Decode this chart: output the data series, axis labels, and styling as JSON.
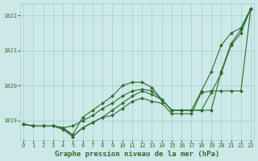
{
  "background_color": "#cce8e8",
  "grid_color": "#aacaca",
  "line_color": "#2d6e2d",
  "marker_color": "#2d6e2d",
  "title": "Graphe pression niveau de la mer (hPa)",
  "title_fontsize": 6.5,
  "ylim": [
    1018.45,
    1022.35
  ],
  "xlim": [
    -0.3,
    23.3
  ],
  "yticks": [
    1019,
    1020,
    1021,
    1022
  ],
  "xticks": [
    0,
    1,
    2,
    3,
    4,
    5,
    6,
    7,
    8,
    9,
    10,
    11,
    12,
    13,
    14,
    15,
    16,
    17,
    18,
    19,
    20,
    21,
    22,
    23
  ],
  "series": [
    [
      1018.9,
      1018.85,
      1018.85,
      1018.85,
      1018.8,
      1018.85,
      1019.0,
      1019.15,
      1019.35,
      1019.5,
      1019.7,
      1019.85,
      1019.9,
      1019.85,
      1019.6,
      1019.3,
      1019.3,
      1019.3,
      1019.3,
      1019.3,
      1020.4,
      1021.2,
      1021.6,
      1022.2
    ],
    [
      1018.9,
      1018.85,
      1018.85,
      1018.85,
      1018.75,
      1018.55,
      1018.8,
      1018.95,
      1019.1,
      1019.3,
      1019.5,
      1019.7,
      1019.85,
      1019.75,
      1019.6,
      1019.3,
      1019.3,
      1019.3,
      1019.3,
      1019.8,
      1020.35,
      1021.15,
      1021.5,
      1022.2
    ],
    [
      1018.9,
      1018.85,
      1018.85,
      1018.85,
      1018.8,
      1018.6,
      1019.1,
      1019.3,
      1019.5,
      1019.7,
      1020.0,
      1020.1,
      1020.1,
      1019.95,
      1019.6,
      1019.3,
      1019.3,
      1019.3,
      1019.85,
      1020.4,
      1021.15,
      1021.5,
      1021.65,
      1022.2
    ],
    [
      1018.9,
      1018.85,
      1018.85,
      1018.85,
      1018.8,
      1018.55,
      1018.8,
      1018.95,
      1019.1,
      1019.15,
      1019.35,
      1019.55,
      1019.65,
      1019.55,
      1019.5,
      1019.2,
      1019.2,
      1019.2,
      1019.8,
      1019.85,
      1019.85,
      1019.85,
      1019.85,
      1022.2
    ]
  ]
}
